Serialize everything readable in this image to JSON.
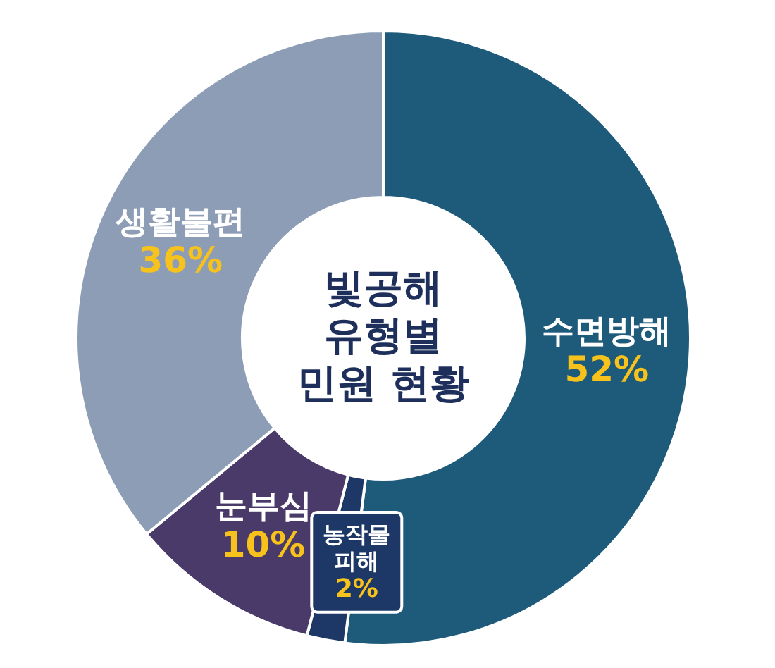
{
  "chart_data": {
    "type": "donut",
    "title": "빛공해 유형별 민원 현황",
    "categories": [
      "수면방해",
      "농작물 피해",
      "눈부심",
      "생활불편"
    ],
    "values": [
      52,
      2,
      10,
      36
    ],
    "value_labels": [
      "52%",
      "2%",
      "10%",
      "36%"
    ],
    "colors": [
      "#1e5a7a",
      "#1d3766",
      "#4a3a6a",
      "#8d9db6"
    ]
  }
}
